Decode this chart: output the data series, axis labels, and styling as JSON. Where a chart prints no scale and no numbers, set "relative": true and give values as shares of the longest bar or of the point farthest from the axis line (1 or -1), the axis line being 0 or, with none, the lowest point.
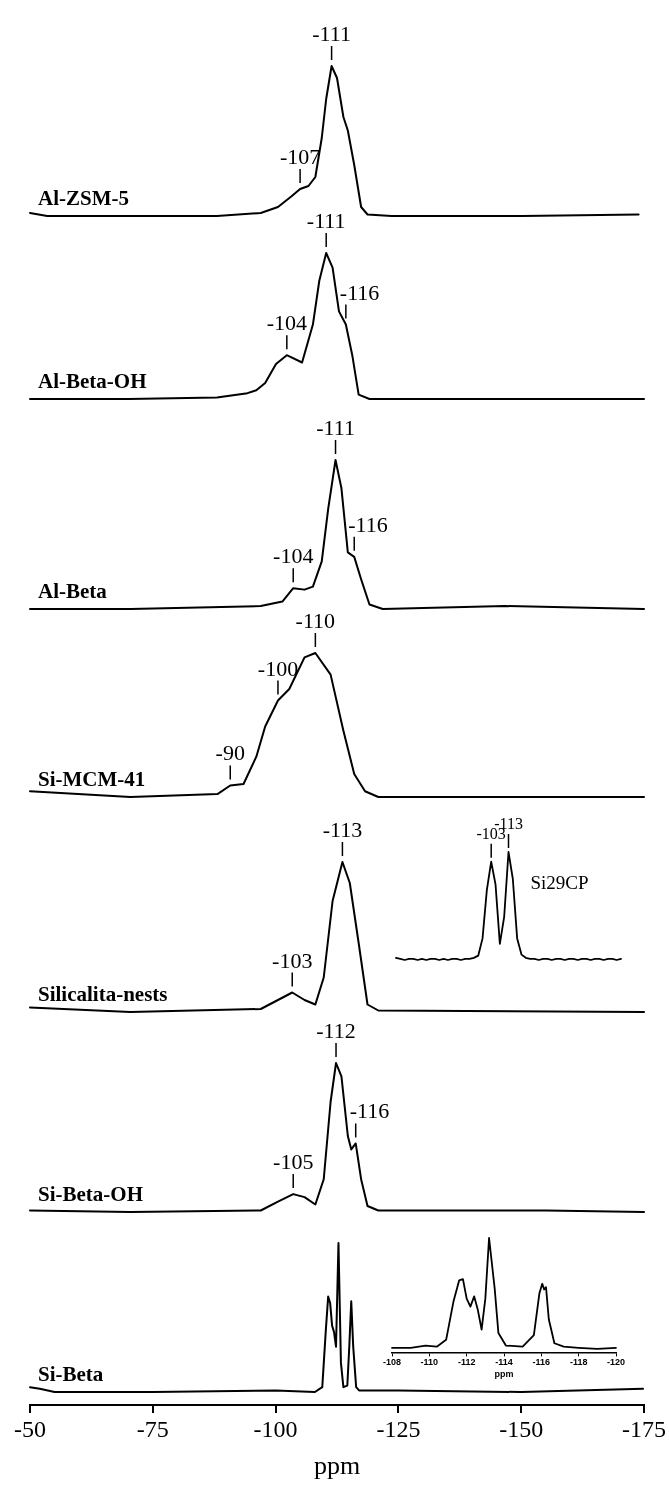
{
  "chart_data": [
    {
      "type": "line",
      "relative": true,
      "xlim": [
        -50,
        -175
      ],
      "tick_labels": false,
      "series": [
        {
          "name": "Al-ZSM-5",
          "color": "#000000",
          "x": [
            -50,
            -53.5,
            -70,
            -88,
            -96.9,
            -100.4,
            -103.1,
            -104.9,
            -106.6,
            -108.0,
            -109.3,
            -110.2,
            -111.3,
            -112.4,
            -113.7,
            -114.6,
            -115.9,
            -117.3,
            -118.6,
            -123.5,
            -150,
            -173.7
          ],
          "values": [
            0.02,
            0,
            0,
            0,
            0.02,
            0.06,
            0.13,
            0.18,
            0.2,
            0.26,
            0.52,
            0.78,
            1,
            0.92,
            0.66,
            0.57,
            0.34,
            0.06,
            0.01,
            0,
            0,
            0.01
          ]
        }
      ],
      "annotations": [
        {
          "text": "-111",
          "x": -111.3,
          "y": 1
        },
        {
          "text": "-107",
          "x": -104.9,
          "y": 0.18
        }
      ]
    },
    {
      "type": "line",
      "relative": true,
      "xlim": [
        -50,
        -175
      ],
      "tick_labels": false,
      "series": [
        {
          "name": "Al-Beta-OH",
          "color": "#000000",
          "x": [
            -50,
            -70,
            -88,
            -94.2,
            -96.0,
            -97.8,
            -100.0,
            -102.2,
            -105.3,
            -107.5,
            -108.8,
            -110.2,
            -111.5,
            -112.8,
            -114.2,
            -115.5,
            -116.8,
            -119,
            -150,
            -174.8
          ],
          "values": [
            0,
            0,
            0.01,
            0.04,
            0.06,
            0.11,
            0.24,
            0.3,
            0.25,
            0.51,
            0.81,
            1,
            0.9,
            0.6,
            0.51,
            0.3,
            0.03,
            0,
            0,
            0
          ]
        }
      ],
      "annotations": [
        {
          "text": "-111",
          "x": -110.2,
          "y": 1
        },
        {
          "text": "-104",
          "x": -102.2,
          "y": 0.3
        },
        {
          "text": "-116",
          "x": -114.2,
          "y": 0.51
        }
      ]
    },
    {
      "type": "line",
      "relative": true,
      "xlim": [
        -50,
        -175
      ],
      "tick_labels": false,
      "series": [
        {
          "name": "Al-Beta",
          "color": "#000000",
          "x": [
            -50,
            -70.4,
            -96.9,
            -101.3,
            -103.5,
            -105.8,
            -107.5,
            -109.3,
            -110.6,
            -112.1,
            -113.3,
            -114.6,
            -115.9,
            -117.3,
            -119,
            -121.7,
            -146.5,
            -174.8
          ],
          "values": [
            0,
            0,
            0.02,
            0.05,
            0.14,
            0.13,
            0.15,
            0.32,
            0.67,
            1,
            0.81,
            0.38,
            0.35,
            0.2,
            0.03,
            0,
            0.02,
            0
          ]
        }
      ],
      "annotations": [
        {
          "text": "-111",
          "x": -112.1,
          "y": 1
        },
        {
          "text": "-104",
          "x": -103.5,
          "y": 0.14
        },
        {
          "text": "-116",
          "x": -115.9,
          "y": 0.35
        }
      ]
    },
    {
      "type": "line",
      "relative": true,
      "xlim": [
        -50,
        -175
      ],
      "tick_labels": false,
      "series": [
        {
          "name": "Si-MCM-41",
          "color": "#000000",
          "x": [
            -50,
            -70.4,
            -88.1,
            -90.7,
            -93.4,
            -96.0,
            -97.8,
            -100.4,
            -102.7,
            -105.8,
            -108.0,
            -111.1,
            -113.7,
            -115.9,
            -118.1,
            -120.8,
            -146.5,
            -174.8
          ],
          "values": [
            0.04,
            0,
            0.02,
            0.08,
            0.09,
            0.28,
            0.49,
            0.67,
            0.75,
            0.97,
            1,
            0.85,
            0.46,
            0.16,
            0.04,
            0,
            0,
            0
          ]
        }
      ],
      "annotations": [
        {
          "text": "-110",
          "x": -108.0,
          "y": 1
        },
        {
          "text": "-100",
          "x": -100.4,
          "y": 0.67
        },
        {
          "text": "-90",
          "x": -90.7,
          "y": 0.08
        }
      ]
    },
    {
      "type": "line",
      "relative": true,
      "xlim": [
        -50,
        -175
      ],
      "tick_labels": false,
      "series": [
        {
          "name": "Silicalita-nests",
          "color": "#000000",
          "x": [
            -50,
            -70.4,
            -96.9,
            -100.4,
            -103.3,
            -105.8,
            -108.0,
            -109.7,
            -111.5,
            -113.5,
            -115.0,
            -116.8,
            -118.6,
            -120.8,
            -174.8
          ],
          "values": [
            0.03,
            0,
            0.02,
            0.08,
            0.13,
            0.08,
            0.05,
            0.23,
            0.74,
            1,
            0.86,
            0.46,
            0.05,
            0.01,
            0
          ]
        }
      ],
      "annotations": [
        {
          "text": "-113",
          "x": -113.5,
          "y": 1
        },
        {
          "text": "-103",
          "x": -103.3,
          "y": 0.13
        }
      ]
    },
    {
      "type": "line",
      "relative": true,
      "tick_labels": false,
      "categories": [
        null,
        null,
        null,
        null,
        null,
        null,
        null,
        null,
        null,
        null,
        null,
        null,
        null,
        null,
        null,
        null,
        null,
        null,
        null,
        null,
        null,
        null,
        null,
        null,
        null,
        null,
        null,
        null,
        null,
        null,
        null,
        null,
        null,
        null,
        null,
        null,
        null,
        null,
        null,
        null,
        null,
        null,
        null,
        null,
        null,
        null,
        null,
        null,
        null,
        null,
        null,
        null,
        null
      ],
      "series": [
        {
          "name": "Si29CP",
          "color": "#000000",
          "values": [
            0.02,
            0.01,
            0,
            0.01,
            0.01,
            0,
            0.01,
            0,
            0.01,
            0.01,
            0,
            0.01,
            0,
            0.01,
            0.01,
            0,
            0.01,
            0.01,
            0.02,
            0.04,
            0.2,
            0.65,
            0.91,
            0.7,
            0.15,
            0.4,
            1,
            0.75,
            0.2,
            0.05,
            0.02,
            0.01,
            0.01,
            0,
            0.01,
            0.01,
            0,
            0.01,
            0.01,
            0,
            0.01,
            0.01,
            0,
            0.01,
            0.01,
            0,
            0.01,
            0.01,
            0,
            0.01,
            0.01,
            0,
            0.01
          ]
        }
      ],
      "annotations": [
        "-103",
        "-113"
      ]
    },
    {
      "type": "line",
      "relative": true,
      "xlim": [
        -50,
        -175
      ],
      "tick_labels": false,
      "series": [
        {
          "name": "Si-Beta-OH",
          "color": "#000000",
          "x": [
            -50,
            -70.4,
            -96.9,
            -100.4,
            -103.5,
            -105.8,
            -108.0,
            -109.7,
            -111.1,
            -112.2,
            -113.3,
            -114.6,
            -115.3,
            -116.2,
            -117.3,
            -118.6,
            -120.8,
            -154.9,
            -174.8
          ],
          "values": [
            0.01,
            0,
            0.01,
            0.07,
            0.12,
            0.1,
            0.05,
            0.22,
            0.74,
            1,
            0.91,
            0.51,
            0.42,
            0.46,
            0.22,
            0.04,
            0.01,
            0.01,
            0
          ]
        }
      ],
      "annotations": [
        {
          "text": "-112",
          "x": -112.2,
          "y": 1
        },
        {
          "text": "-116",
          "x": -116.2,
          "y": 0.46
        },
        {
          "text": "-105",
          "x": -103.5,
          "y": 0.12
        }
      ]
    },
    {
      "type": "line",
      "relative": true,
      "xlim": [
        -50,
        -175
      ],
      "xlabel": "ppm",
      "xticks": [
        -50,
        -75,
        -100,
        -125,
        -150,
        -175
      ],
      "tick_labels": "x",
      "series": [
        {
          "name": "Si-Beta",
          "color": "#000000",
          "x": [
            -50,
            -52,
            -55,
            -75,
            -100,
            -108.0,
            -109.5,
            -110.2,
            -110.7,
            -111.1,
            -111.5,
            -111.9,
            -112.3,
            -112.8,
            -113.3,
            -113.8,
            -114.6,
            -115.0,
            -115.4,
            -115.8,
            -116.4,
            -117,
            -125,
            -150,
            -174.8
          ],
          "values": [
            0.11,
            0.1,
            0.08,
            0.08,
            0.09,
            0.08,
            0.11,
            0.45,
            0.67,
            0.63,
            0.49,
            0.45,
            0.36,
            1,
            0.26,
            0.11,
            0.12,
            0.36,
            0.64,
            0.36,
            0.11,
            0.09,
            0.09,
            0.08,
            0.1
          ]
        }
      ]
    },
    {
      "type": "line",
      "relative": true,
      "xlim": [
        -108,
        -120
      ],
      "xlabel": "ppm",
      "xticks": [
        -108,
        -110,
        -112,
        -114,
        -116,
        -118,
        -120
      ],
      "tick_labels": "x",
      "series": [
        {
          "color": "#000000",
          "x": [
            -108,
            -109,
            -109.8,
            -110.4,
            -110.9,
            -111.3,
            -111.6,
            -111.8,
            -112.0,
            -112.2,
            -112.4,
            -112.6,
            -112.8,
            -113.0,
            -113.2,
            -113.5,
            -113.7,
            -114.1,
            -115.0,
            -115.6,
            -115.9,
            -116.05,
            -116.15,
            -116.25,
            -116.4,
            -116.7,
            -117.2,
            -118,
            -119,
            -120
          ],
          "values": [
            0.04,
            0.04,
            0.06,
            0.05,
            0.11,
            0.45,
            0.63,
            0.64,
            0.47,
            0.4,
            0.49,
            0.37,
            0.2,
            0.47,
            1,
            0.56,
            0.17,
            0.06,
            0.05,
            0.15,
            0.52,
            0.6,
            0.55,
            0.57,
            0.29,
            0.08,
            0.05,
            0.04,
            0.03,
            0.04
          ]
        }
      ]
    }
  ]
}
